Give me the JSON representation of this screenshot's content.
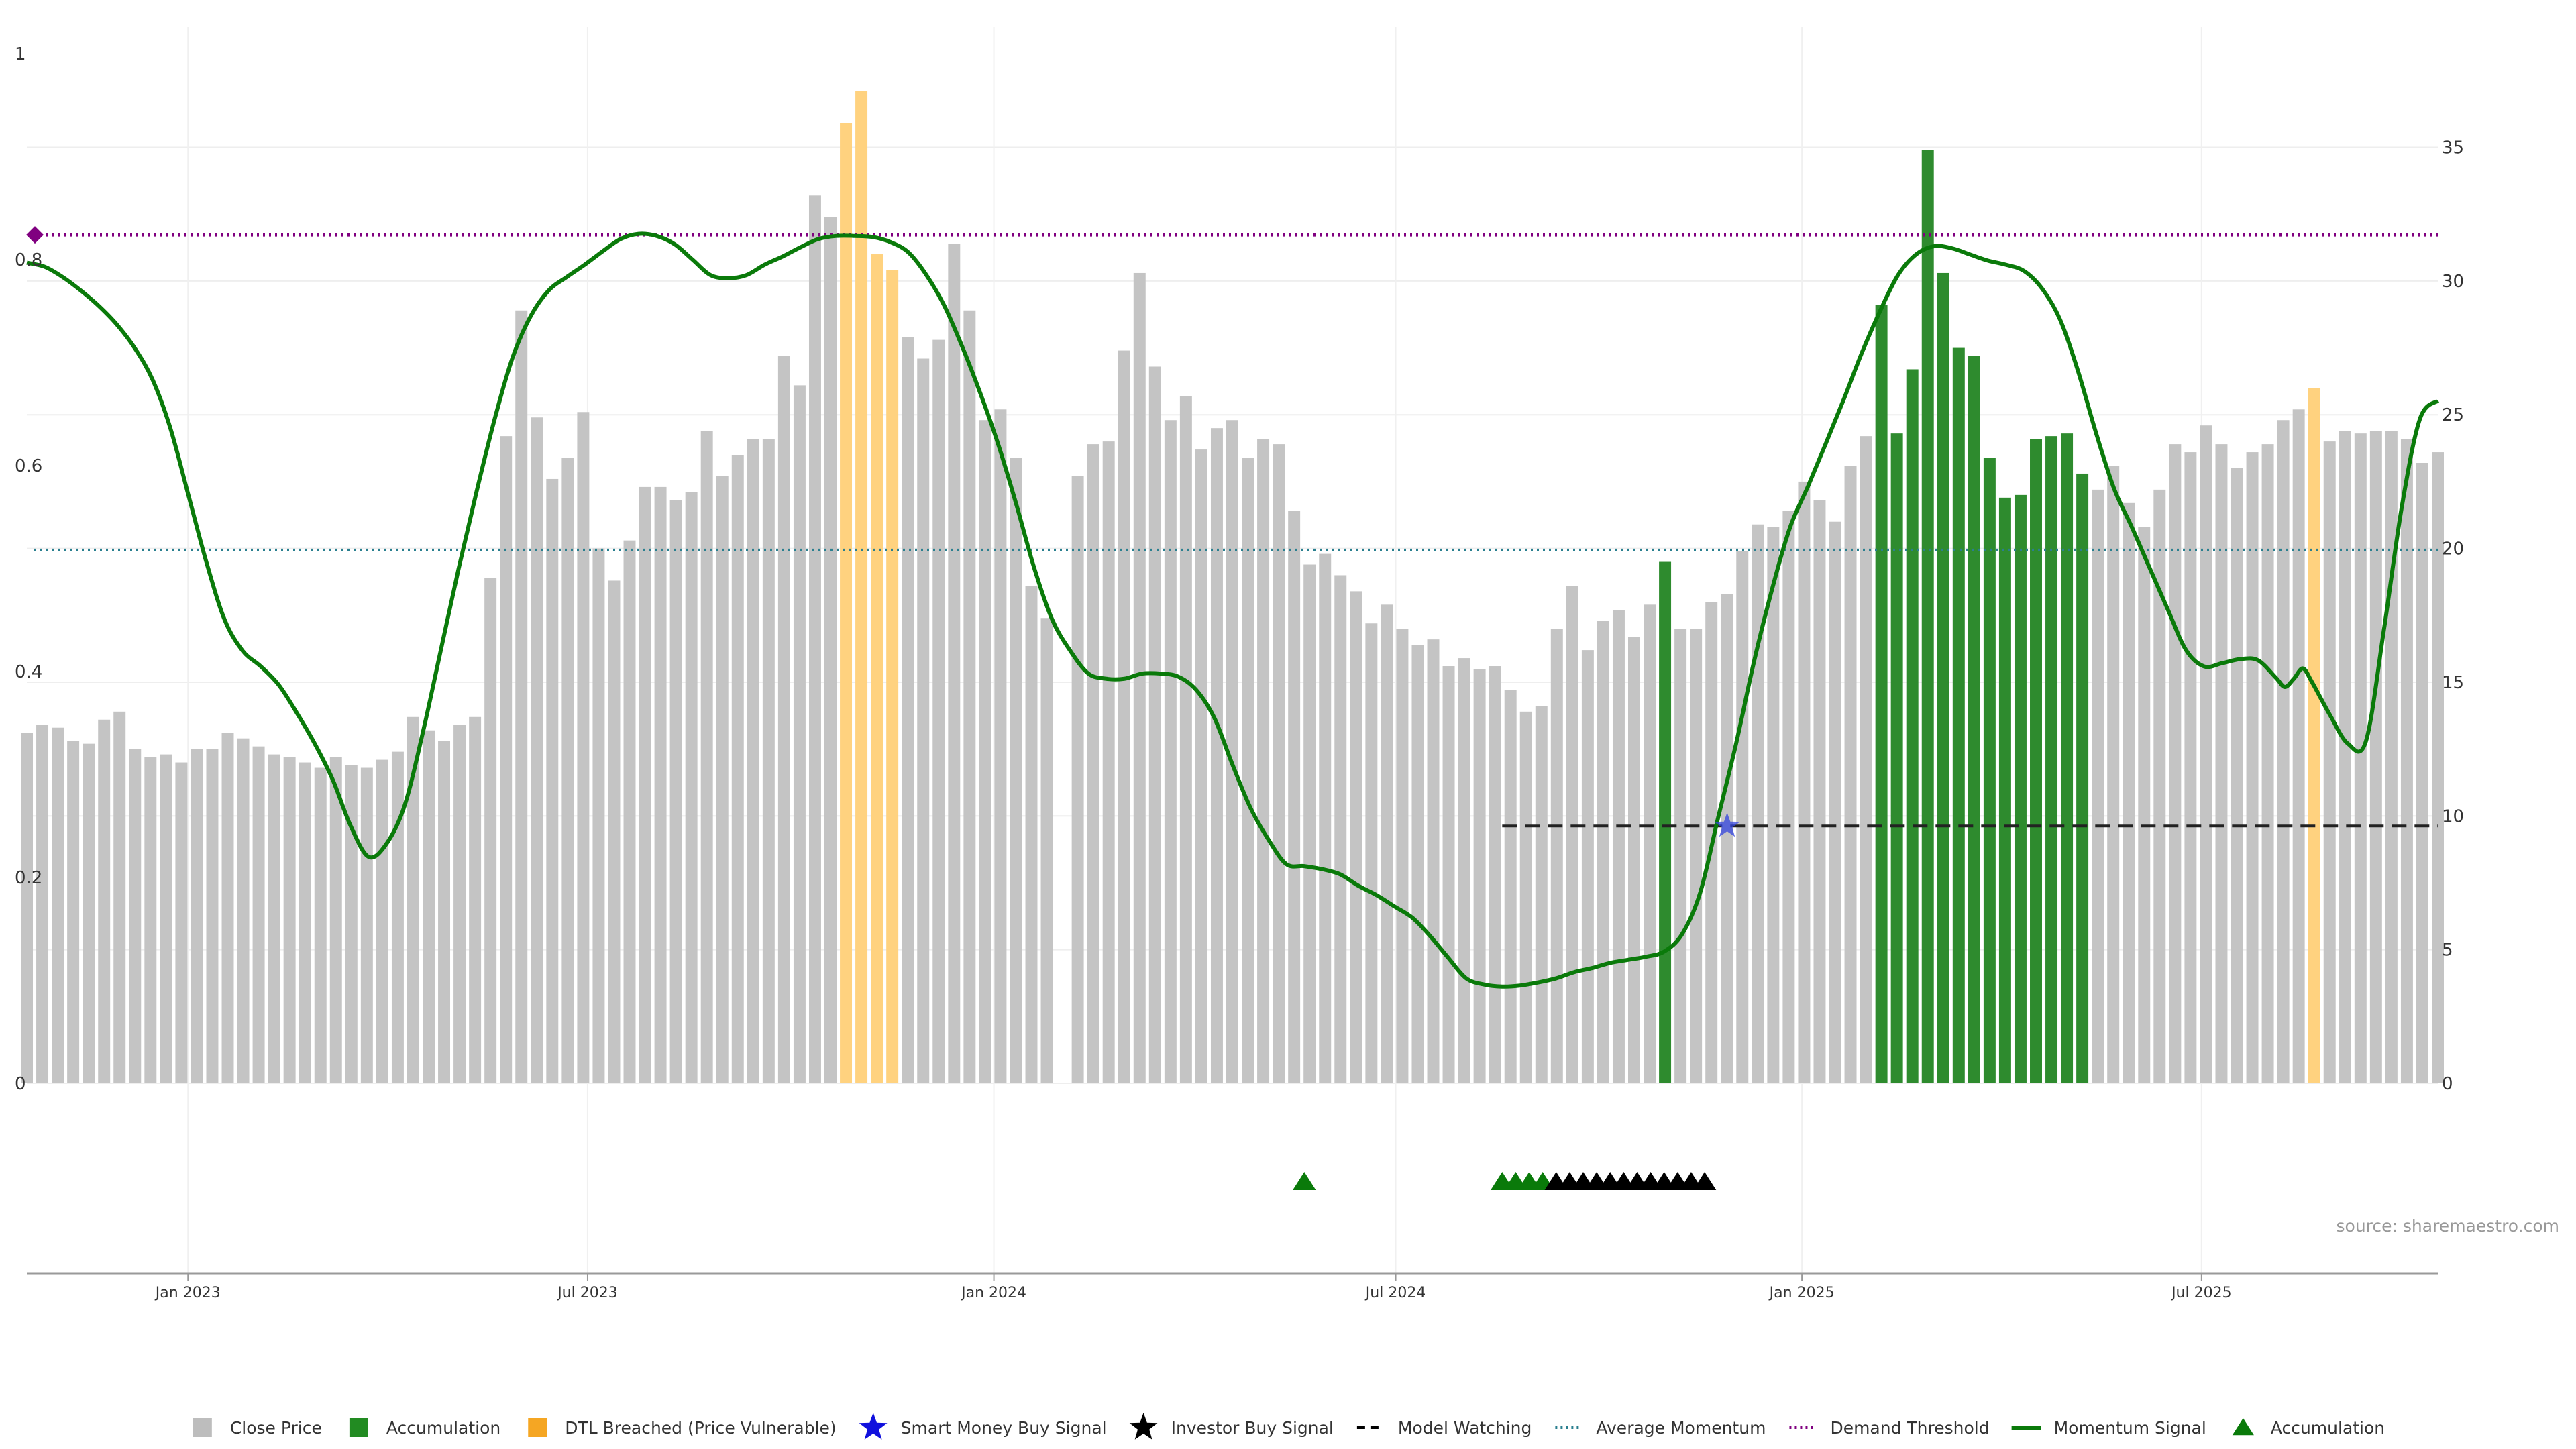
{
  "chart_data": {
    "type": "bar",
    "source": "source: sharemaestro.com",
    "left_axis": {
      "ylim": [
        0,
        1
      ],
      "ticks": [
        0,
        0.2,
        0.4,
        0.6,
        0.8,
        1
      ],
      "tick_labels": [
        "0",
        "0.2",
        "0.4",
        "0.6",
        "0.8",
        "1"
      ]
    },
    "right_axis": {
      "ylim": [
        0,
        38.5
      ],
      "ticks": [
        0,
        5,
        10,
        15,
        20,
        25,
        30,
        35
      ],
      "tick_labels": [
        "0",
        "5",
        "10",
        "15",
        "20",
        "25",
        "30",
        "35"
      ]
    },
    "x_axis": {
      "start": "2022-10-20",
      "end": "2025-10-16",
      "ticks": [
        {
          "date": "2023-01-01",
          "label": "Jan 2023"
        },
        {
          "date": "2023-07-01",
          "label": "Jul 2023"
        },
        {
          "date": "2024-01-01",
          "label": "Jan 2024"
        },
        {
          "date": "2024-07-01",
          "label": "Jul 2024"
        },
        {
          "date": "2025-01-01",
          "label": "Jan 2025"
        },
        {
          "date": "2025-07-01",
          "label": "Jul 2025"
        }
      ]
    },
    "bar_start": "2022-10-20",
    "bar_interval_days": 7,
    "close_price": [
      13.1,
      13.4,
      13.3,
      12.8,
      12.7,
      13.6,
      13.9,
      12.5,
      12.2,
      12.3,
      12.0,
      12.5,
      12.5,
      13.1,
      12.9,
      12.6,
      12.3,
      12.2,
      12.0,
      11.8,
      12.2,
      11.9,
      11.8,
      12.1,
      12.4,
      13.7,
      13.2,
      12.8,
      13.4,
      13.7,
      18.9,
      24.2,
      28.9,
      24.9,
      22.6,
      23.4,
      25.1,
      20.0,
      18.8,
      20.3,
      22.3,
      22.3,
      21.8,
      22.1,
      24.4,
      22.7,
      23.5,
      24.1,
      24.1,
      27.2,
      26.1,
      33.2,
      32.4,
      35.9,
      37.1,
      31.0,
      30.4,
      27.9,
      27.1,
      27.8,
      31.4,
      28.9,
      24.8,
      25.2,
      23.4,
      18.6,
      17.4,
      0,
      22.7,
      23.9,
      24.0,
      27.4,
      30.3,
      26.8,
      24.8,
      25.7,
      23.7,
      24.5,
      24.8,
      23.4,
      24.1,
      23.9,
      21.4,
      19.4,
      19.8,
      19.0,
      18.4,
      17.2,
      17.9,
      17.0,
      16.4,
      16.6,
      15.6,
      15.9,
      15.5,
      15.6,
      14.7,
      13.9,
      14.1,
      17.0,
      18.6,
      16.2,
      17.3,
      17.7,
      16.7,
      17.9,
      19.5,
      17.0,
      17.0,
      18.0,
      18.3,
      19.9,
      20.9,
      20.8,
      21.4,
      22.5,
      21.8,
      21.0,
      23.1,
      24.2,
      29.1,
      24.3,
      26.7,
      34.9,
      30.3,
      27.5,
      27.2,
      23.4,
      21.9,
      22.0,
      24.1,
      24.2,
      24.3,
      22.8,
      22.2,
      23.1,
      21.7,
      20.8,
      22.2,
      23.9,
      23.6,
      24.6,
      23.9,
      23.0,
      23.6,
      23.9,
      24.8,
      25.2,
      26.0,
      24.0,
      24.4,
      24.3,
      24.4,
      24.4,
      24.1,
      23.2,
      23.6
    ],
    "bar_state": "GGGGGGGGGGGGGGGGGGGGGGGGGGGGGGGGGGGGGGGGGGGGGGGGGGGGGOOOOGGGGGGGGGGGGGGGGGGGGGGGGGGGGGGGGGGGGGGGGGGGGGGGGGAGGGGGGGGGGGGGAAAAAAAAAAAAAAGGGGGGGGGGGGGGOGGGGGGGGGGGGGGGGGGGGGGGGGGGGGGGG",
    "momentum_signal": [
      [
        0,
        0.797
      ],
      [
        2,
        0.793
      ],
      [
        4,
        0.783
      ],
      [
        6,
        0.77
      ],
      [
        8,
        0.755
      ],
      [
        10,
        0.737
      ],
      [
        12,
        0.714
      ],
      [
        14,
        0.683
      ],
      [
        16,
        0.635
      ],
      [
        18,
        0.57
      ],
      [
        20,
        0.505
      ],
      [
        22,
        0.45
      ],
      [
        24,
        0.42
      ],
      [
        26,
        0.405
      ],
      [
        28,
        0.387
      ],
      [
        30,
        0.36
      ],
      [
        32,
        0.33
      ],
      [
        34,
        0.295
      ],
      [
        36,
        0.25
      ],
      [
        38,
        0.22
      ],
      [
        40,
        0.233
      ],
      [
        42,
        0.27
      ],
      [
        44,
        0.34
      ],
      [
        46,
        0.42
      ],
      [
        48,
        0.5
      ],
      [
        50,
        0.575
      ],
      [
        52,
        0.645
      ],
      [
        54,
        0.705
      ],
      [
        56,
        0.745
      ],
      [
        58,
        0.77
      ],
      [
        60,
        0.783
      ],
      [
        62,
        0.795
      ],
      [
        64,
        0.808
      ],
      [
        66,
        0.82
      ],
      [
        68,
        0.825
      ],
      [
        70,
        0.823
      ],
      [
        72,
        0.815
      ],
      [
        74,
        0.8
      ],
      [
        76,
        0.785
      ],
      [
        78,
        0.782
      ],
      [
        80,
        0.785
      ],
      [
        82,
        0.795
      ],
      [
        84,
        0.803
      ],
      [
        86,
        0.812
      ],
      [
        88,
        0.82
      ],
      [
        90,
        0.823
      ],
      [
        92,
        0.823
      ],
      [
        94,
        0.822
      ],
      [
        96,
        0.817
      ],
      [
        98,
        0.807
      ],
      [
        100,
        0.785
      ],
      [
        102,
        0.755
      ],
      [
        104,
        0.715
      ],
      [
        106,
        0.67
      ],
      [
        108,
        0.62
      ],
      [
        110,
        0.562
      ],
      [
        112,
        0.5
      ],
      [
        114,
        0.45
      ],
      [
        116,
        0.42
      ],
      [
        118,
        0.398
      ],
      [
        120,
        0.393
      ],
      [
        122,
        0.393
      ],
      [
        124,
        0.398
      ],
      [
        126,
        0.398
      ],
      [
        128,
        0.395
      ],
      [
        130,
        0.382
      ],
      [
        132,
        0.355
      ],
      [
        134,
        0.31
      ],
      [
        136,
        0.268
      ],
      [
        138,
        0.237
      ],
      [
        140,
        0.213
      ],
      [
        142,
        0.211
      ],
      [
        144,
        0.208
      ],
      [
        146,
        0.203
      ],
      [
        148,
        0.192
      ],
      [
        150,
        0.183
      ],
      [
        152,
        0.172
      ],
      [
        154,
        0.161
      ],
      [
        156,
        0.143
      ],
      [
        158,
        0.122
      ],
      [
        160,
        0.102
      ],
      [
        162,
        0.096
      ],
      [
        164,
        0.094
      ],
      [
        166,
        0.095
      ],
      [
        168,
        0.098
      ],
      [
        170,
        0.102
      ],
      [
        172,
        0.108
      ],
      [
        174,
        0.112
      ],
      [
        176,
        0.117
      ],
      [
        178,
        0.12
      ],
      [
        180,
        0.123
      ],
      [
        182,
        0.128
      ],
      [
        184,
        0.145
      ],
      [
        186,
        0.185
      ],
      [
        188,
        0.258
      ],
      [
        190,
        0.33
      ],
      [
        192,
        0.41
      ],
      [
        194,
        0.48
      ],
      [
        196,
        0.54
      ],
      [
        198,
        0.58
      ],
      [
        200,
        0.622
      ],
      [
        202,
        0.665
      ],
      [
        204,
        0.71
      ],
      [
        206,
        0.75
      ],
      [
        208,
        0.785
      ],
      [
        210,
        0.805
      ],
      [
        212,
        0.813
      ],
      [
        214,
        0.811
      ],
      [
        216,
        0.805
      ],
      [
        218,
        0.799
      ],
      [
        220,
        0.795
      ],
      [
        222,
        0.789
      ],
      [
        224,
        0.772
      ],
      [
        226,
        0.742
      ],
      [
        228,
        0.692
      ],
      [
        230,
        0.632
      ],
      [
        232,
        0.578
      ],
      [
        234,
        0.54
      ],
      [
        236,
        0.5
      ],
      [
        238,
        0.46
      ],
      [
        240,
        0.421
      ],
      [
        242,
        0.405
      ],
      [
        244,
        0.408
      ],
      [
        246,
        0.412
      ],
      [
        248,
        0.411
      ],
      [
        250,
        0.394
      ],
      [
        251,
        0.385
      ],
      [
        252,
        0.393
      ],
      [
        253,
        0.403
      ],
      [
        254,
        0.39
      ],
      [
        256,
        0.358
      ],
      [
        258,
        0.33
      ],
      [
        260,
        0.332
      ],
      [
        262,
        0.44
      ],
      [
        264,
        0.56
      ],
      [
        266,
        0.645
      ],
      [
        268,
        0.663
      ]
    ],
    "momentum_range": [
      0,
      268
    ],
    "average_momentum": 0.518,
    "demand_threshold": 0.824,
    "demand_marker": {
      "x": 0,
      "y": 0.824
    },
    "model_watching": {
      "x_start": 164,
      "x_end": 268,
      "y": 0.25
    },
    "smart_money_signal": {
      "x": 189,
      "y": 0.25
    },
    "marker_row": [
      {
        "type": "accumulation",
        "xs": [
          142,
          164,
          165.5,
          167,
          168.5
        ]
      },
      {
        "type": "investor",
        "xs": [
          170,
          171.5,
          173,
          174.5,
          176,
          177.5,
          179,
          180.5,
          182,
          183.5,
          185,
          186.5
        ]
      }
    ],
    "colors": {
      "close_price": "#c4c4c4",
      "accumulation": "#2e8b2e",
      "dtl_breached": "#ffd27f",
      "momentum": "#0a7a0a",
      "average_momentum": "#2a7f8f",
      "demand_threshold": "#800080",
      "smart_money": "#3344dd",
      "investor": "#000000",
      "model_watching": "#222222"
    },
    "legend": [
      {
        "key": "close-price",
        "label": "Close Price",
        "symbol": "square",
        "color": "#bdbdbd"
      },
      {
        "key": "accumulation-bar",
        "label": "Accumulation",
        "symbol": "square",
        "color": "#228b22"
      },
      {
        "key": "dtl-breached",
        "label": "DTL Breached (Price Vulnerable)",
        "symbol": "square",
        "color": "#f5a623"
      },
      {
        "key": "smart-money-buy",
        "label": "Smart Money Buy Signal",
        "symbol": "star",
        "color": "#1010dd"
      },
      {
        "key": "investor-buy",
        "label": "Investor Buy Signal",
        "symbol": "star",
        "color": "#000000"
      },
      {
        "key": "model-watching",
        "label": "Model Watching",
        "symbol": "dash",
        "color": "#000000"
      },
      {
        "key": "average-momentum",
        "label": "Average Momentum",
        "symbol": "dots",
        "color": "#2a7f8f"
      },
      {
        "key": "demand-threshold",
        "label": "Demand Threshold",
        "symbol": "dots",
        "color": "#800080"
      },
      {
        "key": "momentum-signal",
        "label": "Momentum Signal",
        "symbol": "line",
        "color": "#0a7a0a"
      },
      {
        "key": "accumulation-marker",
        "label": "Accumulation",
        "symbol": "triangle",
        "color": "#0a7a0a"
      }
    ]
  }
}
